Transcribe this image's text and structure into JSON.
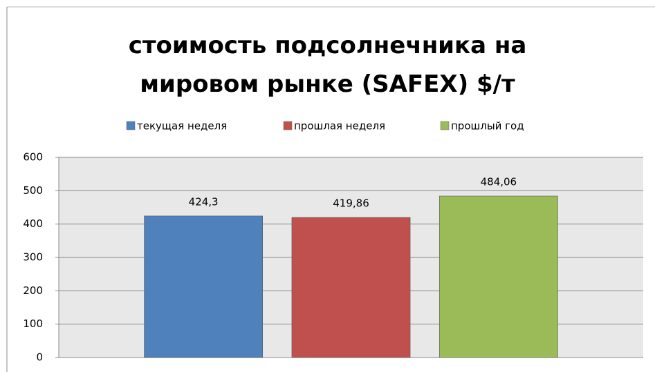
{
  "chart_data": {
    "type": "bar",
    "title": "стоимость подсолнечника на\nмировом рынке (SAFEX) $/т",
    "categories": [
      null
    ],
    "series": [
      {
        "name": "текущая неделя",
        "color": "#4f81bd",
        "values": [
          424.3
        ],
        "value_labels": [
          "424,3"
        ]
      },
      {
        "name": "прошлая неделя",
        "color": "#c0504d",
        "values": [
          419.86
        ],
        "value_labels": [
          "419,86"
        ]
      },
      {
        "name": "прошлый год",
        "color": "#9bbb59",
        "values": [
          484.06
        ],
        "value_labels": [
          "484,06"
        ]
      }
    ],
    "ylim": [
      0,
      600
    ],
    "yticks": [
      0,
      100,
      200,
      300,
      400,
      500,
      600
    ],
    "grid": true,
    "legend": "top"
  }
}
